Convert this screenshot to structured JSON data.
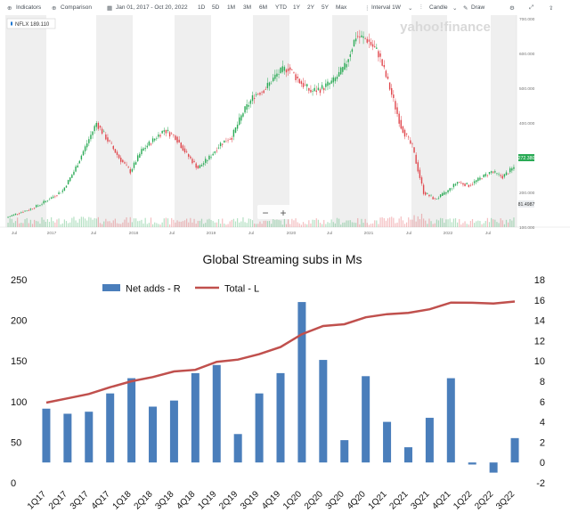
{
  "toolbar": {
    "indicators_label": "Indicators",
    "comparison_label": "Comparison",
    "date_range": "Jan 01, 2017 - Oct 20, 2022",
    "ranges": [
      "1D",
      "5D",
      "1M",
      "3M",
      "6M",
      "YTD",
      "1Y",
      "2Y",
      "5Y",
      "Max"
    ],
    "interval_label": "Interval  1W",
    "chart_type_label": "Candle",
    "draw_label": "Draw"
  },
  "colors": {
    "up_candle": "#2aaa55",
    "down_candle": "#e0474d",
    "bar_blue": "#4a7ebb",
    "line_red": "#c0504d",
    "shade": "#efefef",
    "ticker_tag": "#1f77d0"
  },
  "price_chart": {
    "ticker_label": "NFLX 189.110",
    "watermark": "yahoo!finance",
    "current_price_tag": "272.380",
    "volume_tag": "81.4987",
    "zoom_minus": "−",
    "zoom_plus": "+",
    "x_tick_labels": [
      "Jul",
      "2017",
      "Jul",
      "2018",
      "Jul",
      "2019",
      "Jul",
      "2020",
      "Jul",
      "2021",
      "Jul",
      "2022",
      "Jul"
    ],
    "y_tick_labels": [
      "700.000",
      "600.000",
      "500.000",
      "400.000",
      "300.000",
      "200.000",
      "100.000"
    ],
    "y_tick_values": [
      700,
      600,
      500,
      400,
      300,
      200,
      100
    ],
    "y_range": [
      100,
      700
    ],
    "price_path": [
      [
        0,
        127
      ],
      [
        6,
        140
      ],
      [
        12,
        150
      ],
      [
        18,
        165
      ],
      [
        24,
        185
      ],
      [
        30,
        205
      ],
      [
        36,
        260
      ],
      [
        42,
        330
      ],
      [
        48,
        400
      ],
      [
        54,
        350
      ],
      [
        60,
        300
      ],
      [
        66,
        260
      ],
      [
        72,
        320
      ],
      [
        78,
        350
      ],
      [
        84,
        380
      ],
      [
        90,
        360
      ],
      [
        96,
        310
      ],
      [
        102,
        270
      ],
      [
        108,
        300
      ],
      [
        114,
        340
      ],
      [
        120,
        360
      ],
      [
        126,
        430
      ],
      [
        132,
        480
      ],
      [
        138,
        500
      ],
      [
        144,
        540
      ],
      [
        150,
        560
      ],
      [
        156,
        520
      ],
      [
        162,
        490
      ],
      [
        168,
        500
      ],
      [
        174,
        520
      ],
      [
        180,
        560
      ],
      [
        186,
        650
      ],
      [
        192,
        640
      ],
      [
        198,
        600
      ],
      [
        204,
        500
      ],
      [
        210,
        390
      ],
      [
        216,
        330
      ],
      [
        222,
        200
      ],
      [
        228,
        180
      ],
      [
        234,
        200
      ],
      [
        240,
        230
      ],
      [
        246,
        220
      ],
      [
        252,
        240
      ],
      [
        258,
        260
      ],
      [
        264,
        245
      ],
      [
        270,
        272
      ]
    ]
  },
  "chart_data": {
    "type": "bar",
    "title": "Global Streaming subs in Ms",
    "categories": [
      "1Q17",
      "2Q17",
      "3Q17",
      "4Q17",
      "1Q18",
      "2Q18",
      "3Q18",
      "4Q18",
      "1Q19",
      "2Q19",
      "3Q19",
      "4Q19",
      "1Q20",
      "2Q20",
      "3Q20",
      "4Q20",
      "1Q21",
      "2Q21",
      "3Q21",
      "4Q21",
      "1Q22",
      "2Q22",
      "3Q22"
    ],
    "series": [
      {
        "name": "Net adds - R",
        "type": "bar",
        "axis": "right",
        "values": [
          5.3,
          4.8,
          5.0,
          6.8,
          8.3,
          5.5,
          6.1,
          8.8,
          9.6,
          2.8,
          6.8,
          8.8,
          15.8,
          10.1,
          2.2,
          8.5,
          4.0,
          1.5,
          4.4,
          8.3,
          -0.2,
          -1.0,
          2.4
        ]
      },
      {
        "name": "Total - L",
        "type": "line",
        "axis": "left",
        "values": [
          98.7,
          103.9,
          109.3,
          117.6,
          125.0,
          130.1,
          137.1,
          139.0,
          148.9,
          151.6,
          158.3,
          167.1,
          182.9,
          193.0,
          195.2,
          203.7,
          207.6,
          209.2,
          213.6,
          221.8,
          221.6,
          220.7,
          223.1
        ]
      }
    ],
    "y_left": {
      "ticks": [
        0,
        50,
        100,
        150,
        200,
        250
      ],
      "ylim": [
        0,
        250
      ]
    },
    "y_right": {
      "ticks": [
        -2,
        0,
        2,
        4,
        6,
        8,
        10,
        12,
        14,
        16,
        18
      ],
      "ylim": [
        -2,
        18
      ]
    },
    "legend": {
      "position": "top-left"
    }
  }
}
